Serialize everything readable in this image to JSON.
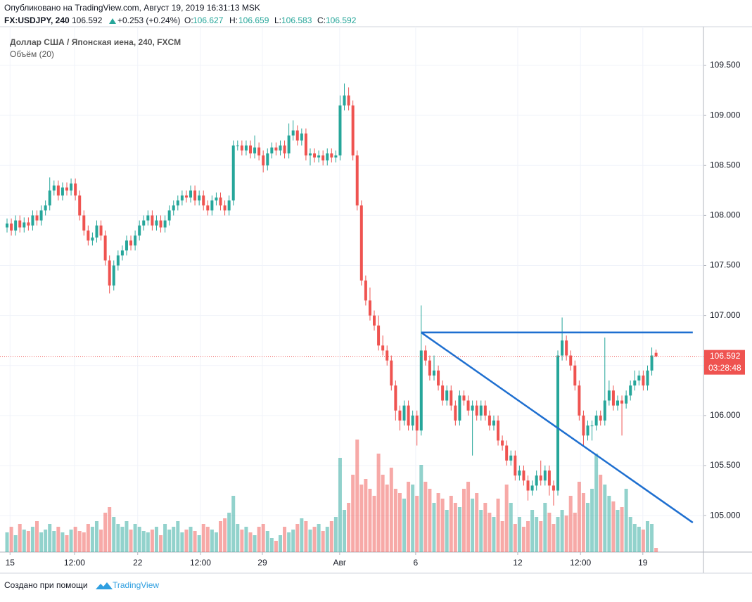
{
  "header": {
    "published": "Опубликовано на TradingView.com, Август 19, 2019 16:31:13 MSK",
    "symbol": "FX:USDJPY, 240",
    "change": "+0.253 (+0.24%)",
    "o_label": "O:",
    "h_label": "H:",
    "l_label": "L:",
    "c_label": "C:"
  },
  "footer": {
    "made_with": "Создано при помощи",
    "brand": "TradingView"
  },
  "chart_data": {
    "type": "candlestick",
    "title": "Доллар США / Японская иена, 240, FXCM",
    "volume_label": "Объём (20)",
    "countdown": "03:28:48",
    "up_color": "#26a69a",
    "down_color": "#ef5350",
    "grid": true,
    "ylim": [
      104.635,
      109.887
    ],
    "xlim": [
      -1.65,
      163.1
    ],
    "volume_lim": [
      0,
      100
    ],
    "yticks": [
      {
        "value": 105.0,
        "label": "105.000"
      },
      {
        "value": 105.5,
        "label": "105.500"
      },
      {
        "value": 106.0,
        "label": "106.000"
      },
      {
        "value": 106.5,
        "label": "106.500"
      },
      {
        "value": 107.0,
        "label": "107.000"
      },
      {
        "value": 107.5,
        "label": "107.500"
      },
      {
        "value": 108.0,
        "label": "108.000"
      },
      {
        "value": 108.5,
        "label": "108.500"
      },
      {
        "value": 109.0,
        "label": "109.000"
      },
      {
        "value": 109.5,
        "label": "109.500"
      }
    ],
    "xticks": [
      {
        "value": 0.7,
        "label": "15"
      },
      {
        "value": 15.8,
        "label": "12:00"
      },
      {
        "value": 30.6,
        "label": "22"
      },
      {
        "value": 45.3,
        "label": "12:00"
      },
      {
        "value": 59.8,
        "label": "29"
      },
      {
        "value": 77.9,
        "label": "Авг"
      },
      {
        "value": 95.7,
        "label": "6"
      },
      {
        "value": 119.6,
        "label": "12"
      },
      {
        "value": 134.3,
        "label": "12:00"
      },
      {
        "value": 148.9,
        "label": "19"
      }
    ],
    "open": [
      107.88,
      107.92,
      107.85,
      107.95,
      107.88,
      107.93,
      107.9,
      108.0,
      107.95,
      108.05,
      108.1,
      108.25,
      108.3,
      108.2,
      108.28,
      108.25,
      108.32,
      108.2,
      108.0,
      107.85,
      107.75,
      107.78,
      107.9,
      107.8,
      107.55,
      107.3,
      107.5,
      107.6,
      107.65,
      107.75,
      107.7,
      107.8,
      107.9,
      107.95,
      108.0,
      107.9,
      107.95,
      107.88,
      107.95,
      108.05,
      108.1,
      108.15,
      108.2,
      108.18,
      108.25,
      108.15,
      108.2,
      108.1,
      108.05,
      108.15,
      108.18,
      108.1,
      108.05,
      108.15,
      108.7,
      108.7,
      108.65,
      108.7,
      108.62,
      108.68,
      108.6,
      108.5,
      108.62,
      108.68,
      108.65,
      108.7,
      108.62,
      108.8,
      108.85,
      108.75,
      108.82,
      108.6,
      108.62,
      108.58,
      108.6,
      108.55,
      108.62,
      108.58,
      108.6,
      109.1,
      109.2,
      109.1,
      108.6,
      108.1,
      107.35,
      107.15,
      107.0,
      106.9,
      106.7,
      106.65,
      106.55,
      106.3,
      106.05,
      105.95,
      106.1,
      105.9,
      106.0,
      105.85,
      106.65,
      106.55,
      106.4,
      106.45,
      106.3,
      106.15,
      106.25,
      106.1,
      105.95,
      106.2,
      106.15,
      106.05,
      106.1,
      106.0,
      106.1,
      106.0,
      105.9,
      105.95,
      105.75,
      105.7,
      105.55,
      105.6,
      105.4,
      105.45,
      105.35,
      105.25,
      105.3,
      105.4,
      105.35,
      105.45,
      105.3,
      105.25,
      106.6,
      106.75,
      106.6,
      106.5,
      106.3,
      106.0,
      105.8,
      105.9,
      105.9,
      106.0,
      105.95,
      106.15,
      106.25,
      106.1,
      106.15,
      106.12,
      106.2,
      106.3,
      106.35,
      106.4,
      106.3,
      106.45,
      106.627
    ],
    "high": [
      107.97,
      107.97,
      108.0,
      108.0,
      107.98,
      107.98,
      108.05,
      108.05,
      108.1,
      108.15,
      108.38,
      108.35,
      108.35,
      108.33,
      108.33,
      108.37,
      108.37,
      108.25,
      108.05,
      107.9,
      107.83,
      107.95,
      107.95,
      107.85,
      107.6,
      107.55,
      107.65,
      107.7,
      107.8,
      107.8,
      107.85,
      107.95,
      108.0,
      108.05,
      108.05,
      108.0,
      108.0,
      108.0,
      108.1,
      108.15,
      108.2,
      108.25,
      108.25,
      108.3,
      108.3,
      108.25,
      108.25,
      108.15,
      108.2,
      108.23,
      108.23,
      108.15,
      108.2,
      108.75,
      108.75,
      108.75,
      108.75,
      108.75,
      108.8,
      108.73,
      108.65,
      108.67,
      108.73,
      108.73,
      108.75,
      108.75,
      108.92,
      108.95,
      108.9,
      108.87,
      108.87,
      108.67,
      108.67,
      108.65,
      108.65,
      108.67,
      108.67,
      108.65,
      109.2,
      109.32,
      109.28,
      109.15,
      108.65,
      108.15,
      107.4,
      107.28,
      107.05,
      107.0,
      106.8,
      106.7,
      106.6,
      106.35,
      106.1,
      106.15,
      106.15,
      106.05,
      106.05,
      107.1,
      106.7,
      106.6,
      106.6,
      106.5,
      106.35,
      106.3,
      106.3,
      106.15,
      106.25,
      106.25,
      106.2,
      106.15,
      106.15,
      106.15,
      106.15,
      106.05,
      106.0,
      106.0,
      105.8,
      105.75,
      105.65,
      105.65,
      105.5,
      105.5,
      105.4,
      105.35,
      105.45,
      105.55,
      105.5,
      105.5,
      105.35,
      106.65,
      106.98,
      106.8,
      106.65,
      106.55,
      106.35,
      106.05,
      105.95,
      105.95,
      106.05,
      106.05,
      106.78,
      106.35,
      106.3,
      106.2,
      106.2,
      106.25,
      106.35,
      106.45,
      106.45,
      106.45,
      106.5,
      106.68,
      106.659
    ],
    "low": [
      107.83,
      107.8,
      107.8,
      107.83,
      107.83,
      107.85,
      107.85,
      107.9,
      107.9,
      108.0,
      108.05,
      108.2,
      108.15,
      108.15,
      108.2,
      108.2,
      108.15,
      107.95,
      107.8,
      107.7,
      107.7,
      107.73,
      107.75,
      107.5,
      107.22,
      107.25,
      107.45,
      107.55,
      107.6,
      107.65,
      107.65,
      107.75,
      107.85,
      107.9,
      107.85,
      107.85,
      107.83,
      107.83,
      107.9,
      108.0,
      108.05,
      108.1,
      108.13,
      108.13,
      108.1,
      108.1,
      108.05,
      108.0,
      108.0,
      108.1,
      108.05,
      108.0,
      108.0,
      108.1,
      108.65,
      108.6,
      108.6,
      108.57,
      108.57,
      108.55,
      108.43,
      108.45,
      108.57,
      108.6,
      108.6,
      108.57,
      108.57,
      108.75,
      108.7,
      108.7,
      108.55,
      108.5,
      108.53,
      108.53,
      108.5,
      108.5,
      108.53,
      108.53,
      108.55,
      109.05,
      109.05,
      108.55,
      108.05,
      107.3,
      107.1,
      106.95,
      106.85,
      106.65,
      106.6,
      106.5,
      106.25,
      105.95,
      105.85,
      105.9,
      105.85,
      105.85,
      105.7,
      105.8,
      106.5,
      106.35,
      106.35,
      106.25,
      106.1,
      106.1,
      106.05,
      105.9,
      105.9,
      106.1,
      106.0,
      105.6,
      105.95,
      105.95,
      105.95,
      105.85,
      105.85,
      105.7,
      105.65,
      105.5,
      105.5,
      105.35,
      105.35,
      105.3,
      105.15,
      105.2,
      105.25,
      105.3,
      105.3,
      105.2,
      105.1,
      105.2,
      106.55,
      106.55,
      106.45,
      106.25,
      105.95,
      105.7,
      105.75,
      105.75,
      105.85,
      105.9,
      105.9,
      106.1,
      106.05,
      106.05,
      105.8,
      106.07,
      106.15,
      106.25,
      106.3,
      106.25,
      106.25,
      106.4,
      106.583
    ],
    "close": [
      107.92,
      107.85,
      107.95,
      107.88,
      107.93,
      107.9,
      108.0,
      107.95,
      108.05,
      108.1,
      108.25,
      108.3,
      108.2,
      108.28,
      108.25,
      108.32,
      108.2,
      108.0,
      107.85,
      107.75,
      107.78,
      107.9,
      107.8,
      107.55,
      107.3,
      107.5,
      107.6,
      107.65,
      107.75,
      107.7,
      107.8,
      107.9,
      107.95,
      108.0,
      107.9,
      107.95,
      107.88,
      107.95,
      108.05,
      108.1,
      108.15,
      108.2,
      108.18,
      108.25,
      108.15,
      108.2,
      108.1,
      108.05,
      108.15,
      108.18,
      108.1,
      108.05,
      108.15,
      108.7,
      108.7,
      108.65,
      108.7,
      108.62,
      108.68,
      108.6,
      108.5,
      108.62,
      108.68,
      108.65,
      108.7,
      108.62,
      108.8,
      108.85,
      108.75,
      108.82,
      108.6,
      108.62,
      108.58,
      108.6,
      108.55,
      108.62,
      108.58,
      108.6,
      109.1,
      109.2,
      109.1,
      108.6,
      108.1,
      107.35,
      107.15,
      107.0,
      106.9,
      106.7,
      106.65,
      106.55,
      106.3,
      106.05,
      105.95,
      106.1,
      105.9,
      106.0,
      105.85,
      106.65,
      106.55,
      106.4,
      106.45,
      106.3,
      106.15,
      106.25,
      106.1,
      105.95,
      106.2,
      106.15,
      106.05,
      106.1,
      106.0,
      106.1,
      106.0,
      105.9,
      105.95,
      105.75,
      105.7,
      105.55,
      105.6,
      105.4,
      105.45,
      105.35,
      105.25,
      105.3,
      105.4,
      105.35,
      105.45,
      105.3,
      105.25,
      106.6,
      106.75,
      106.6,
      106.5,
      106.3,
      106.0,
      105.8,
      105.9,
      105.9,
      106.0,
      105.95,
      106.15,
      106.25,
      106.1,
      106.15,
      106.12,
      106.2,
      106.3,
      106.35,
      106.4,
      106.3,
      106.45,
      106.6,
      106.592
    ],
    "volume": [
      14,
      18,
      12,
      20,
      16,
      15,
      18,
      22,
      14,
      16,
      20,
      15,
      18,
      14,
      12,
      16,
      18,
      15,
      14,
      20,
      18,
      22,
      16,
      28,
      32,
      25,
      20,
      18,
      22,
      16,
      20,
      18,
      15,
      14,
      16,
      18,
      12,
      20,
      16,
      18,
      22,
      14,
      16,
      18,
      15,
      12,
      20,
      18,
      16,
      14,
      22,
      24,
      28,
      40,
      20,
      16,
      18,
      14,
      12,
      18,
      20,
      15,
      10,
      8,
      12,
      18,
      14,
      16,
      20,
      24,
      22,
      16,
      18,
      20,
      15,
      18,
      22,
      25,
      67,
      30,
      35,
      55,
      80,
      48,
      52,
      45,
      40,
      70,
      55,
      48,
      60,
      45,
      42,
      38,
      50,
      48,
      40,
      62,
      50,
      45,
      35,
      42,
      38,
      30,
      40,
      35,
      32,
      45,
      50,
      38,
      42,
      30,
      35,
      28,
      25,
      38,
      22,
      48,
      35,
      20,
      25,
      18,
      22,
      30,
      25,
      22,
      35,
      28,
      20,
      25,
      30,
      26,
      40,
      28,
      50,
      42,
      35,
      45,
      70,
      55,
      48,
      40,
      36,
      30,
      32,
      45,
      25,
      20,
      18,
      16,
      22,
      20,
      3
    ],
    "trendlines": [
      {
        "color": "#1e6fd0",
        "x": [
          97,
          160.6
        ],
        "y": [
          106.83,
          106.83
        ]
      },
      {
        "color": "#1e6fd0",
        "x": [
          97,
          160.6
        ],
        "y": [
          106.83,
          104.93
        ]
      }
    ]
  }
}
